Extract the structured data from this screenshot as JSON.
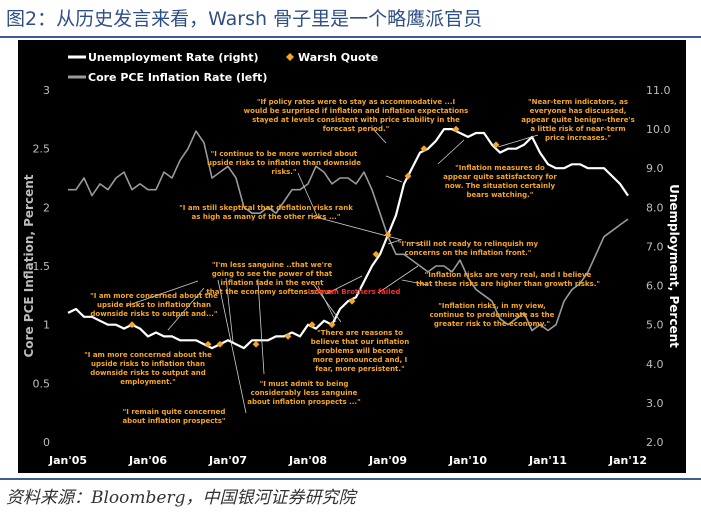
{
  "figure": {
    "title": "图2：从历史发言来看，Warsh 骨子里是一个略鹰派官员",
    "source": "资料来源：Bloomberg，中国银河证券研究院"
  },
  "colors": {
    "background": "#000000",
    "unemployment": "#ffffff",
    "pce": "#9a9a9a",
    "quote_marker": "#f5a623",
    "quote_text": "#f5a623",
    "red_label": "#ff2a2a",
    "axis_text": "#bdbdbd"
  },
  "chart_data": {
    "type": "line",
    "legend": {
      "placement": "top-left",
      "items": [
        {
          "label": "Unemployment Rate (right)",
          "marker": "line",
          "color": "#ffffff"
        },
        {
          "label": "Warsh Quote",
          "marker": "diamond",
          "color": "#f5a623"
        },
        {
          "label": "Core PCE Inflation Rate (left)",
          "marker": "line",
          "color": "#9a9a9a"
        }
      ]
    },
    "ylabel_left": "Core PCE Inflation, Percent",
    "ylabel_right": "Unemployment, Percent",
    "ylim_left": [
      0,
      3
    ],
    "ylim_right": [
      2.0,
      11.0
    ],
    "xlim": [
      2005.0,
      2012.05
    ],
    "grid": false,
    "x_ticks": [
      {
        "label": "Jan'05",
        "value": 2005.0
      },
      {
        "label": "Jan'06",
        "value": 2006.0
      },
      {
        "label": "Jan'07",
        "value": 2007.0
      },
      {
        "label": "Jan'08",
        "value": 2008.0
      },
      {
        "label": "Jan'09",
        "value": 2009.0
      },
      {
        "label": "Jan'10",
        "value": 2010.0
      },
      {
        "label": "Jan'11",
        "value": 2011.0
      },
      {
        "label": "Jan'12",
        "value": 2012.0
      }
    ],
    "y_ticks_left": [
      "0",
      "0.5",
      "1",
      "1.5",
      "2",
      "2.5",
      "3"
    ],
    "y_ticks_right": [
      "2.0",
      "3.0",
      "4.0",
      "5.0",
      "6.0",
      "7.0",
      "8.0",
      "9.0",
      "10.0",
      "11.0"
    ],
    "series": [
      {
        "name": "Unemployment Rate (right)",
        "axis": "right",
        "x": [
          2005.0,
          2005.1,
          2005.2,
          2005.3,
          2005.4,
          2005.5,
          2005.6,
          2005.7,
          2005.8,
          2005.9,
          2006.0,
          2006.1,
          2006.2,
          2006.3,
          2006.4,
          2006.5,
          2006.6,
          2006.7,
          2006.8,
          2006.9,
          2007.0,
          2007.1,
          2007.2,
          2007.3,
          2007.4,
          2007.5,
          2007.6,
          2007.7,
          2007.8,
          2007.9,
          2008.0,
          2008.1,
          2008.2,
          2008.3,
          2008.4,
          2008.5,
          2008.6,
          2008.7,
          2008.8,
          2008.9,
          2009.0,
          2009.1,
          2009.2,
          2009.3,
          2009.4,
          2009.5,
          2009.6,
          2009.7,
          2009.8,
          2009.9,
          2010.0,
          2010.1,
          2010.2,
          2010.3,
          2010.4,
          2010.5,
          2010.6,
          2010.7,
          2010.8,
          2010.9,
          2011.0,
          2011.1,
          2011.2,
          2011.3,
          2011.4,
          2011.5,
          2011.6,
          2011.7,
          2011.8,
          2011.9,
          2012.0
        ],
        "values": [
          5.3,
          5.4,
          5.2,
          5.2,
          5.1,
          5.0,
          5.0,
          4.9,
          5.0,
          4.9,
          4.7,
          4.8,
          4.7,
          4.7,
          4.6,
          4.6,
          4.6,
          4.5,
          4.4,
          4.5,
          4.6,
          4.5,
          4.4,
          4.6,
          4.6,
          4.6,
          4.7,
          4.7,
          4.8,
          4.7,
          5.0,
          4.9,
          5.1,
          5.0,
          5.4,
          5.6,
          5.7,
          6.1,
          6.5,
          6.8,
          7.3,
          7.8,
          8.6,
          9.0,
          9.4,
          9.5,
          9.7,
          10.0,
          10.0,
          9.9,
          9.8,
          9.9,
          9.9,
          9.6,
          9.4,
          9.5,
          9.5,
          9.6,
          9.8,
          9.4,
          9.1,
          9.0,
          9.0,
          9.1,
          9.1,
          9.0,
          9.0,
          9.0,
          8.8,
          8.6,
          8.3
        ]
      },
      {
        "name": "Core PCE Inflation Rate (left)",
        "axis": "left",
        "x": [
          2005.0,
          2005.1,
          2005.2,
          2005.3,
          2005.4,
          2005.5,
          2005.6,
          2005.7,
          2005.8,
          2005.9,
          2006.0,
          2006.1,
          2006.2,
          2006.3,
          2006.4,
          2006.5,
          2006.6,
          2006.7,
          2006.8,
          2006.9,
          2007.0,
          2007.1,
          2007.2,
          2007.3,
          2007.4,
          2007.5,
          2007.6,
          2007.7,
          2007.8,
          2007.9,
          2008.0,
          2008.1,
          2008.2,
          2008.3,
          2008.4,
          2008.5,
          2008.6,
          2008.7,
          2008.8,
          2008.9,
          2009.0,
          2009.1,
          2009.2,
          2009.3,
          2009.4,
          2009.5,
          2009.6,
          2009.7,
          2009.8,
          2009.9,
          2010.0,
          2010.1,
          2010.2,
          2010.3,
          2010.4,
          2010.5,
          2010.6,
          2010.7,
          2010.8,
          2010.9,
          2011.0,
          2011.1,
          2011.2,
          2011.3,
          2011.4,
          2011.5,
          2011.6,
          2011.7,
          2011.8,
          2011.9,
          2012.0
        ],
        "values": [
          2.15,
          2.15,
          2.25,
          2.1,
          2.2,
          2.15,
          2.25,
          2.3,
          2.15,
          2.2,
          2.15,
          2.15,
          2.3,
          2.25,
          2.4,
          2.5,
          2.65,
          2.55,
          2.25,
          2.3,
          2.35,
          2.25,
          2.0,
          1.95,
          1.95,
          2.0,
          1.95,
          2.05,
          2.15,
          2.15,
          2.2,
          2.35,
          2.3,
          2.2,
          2.25,
          2.25,
          2.2,
          2.3,
          2.15,
          1.95,
          1.75,
          1.6,
          1.6,
          1.55,
          1.5,
          1.45,
          1.5,
          1.5,
          1.45,
          1.55,
          1.4,
          1.3,
          1.25,
          1.2,
          1.05,
          1.0,
          1.05,
          1.1,
          0.95,
          1.0,
          0.95,
          1.0,
          1.2,
          1.3,
          1.35,
          1.45,
          1.6,
          1.75,
          1.8,
          1.85,
          1.9
        ]
      }
    ],
    "quote_markers": [
      {
        "x": 2005.8,
        "y_right": 5.0
      },
      {
        "x": 2006.75,
        "y_right": 4.5
      },
      {
        "x": 2006.9,
        "y_right": 4.5
      },
      {
        "x": 2007.35,
        "y_right": 4.5
      },
      {
        "x": 2007.75,
        "y_right": 4.7
      },
      {
        "x": 2008.05,
        "y_right": 5.0
      },
      {
        "x": 2008.3,
        "y_right": 5.0
      },
      {
        "x": 2008.55,
        "y_right": 5.6
      },
      {
        "x": 2008.85,
        "y_right": 6.8
      },
      {
        "x": 2009.0,
        "y_right": 7.3
      },
      {
        "x": 2009.25,
        "y_right": 8.8
      },
      {
        "x": 2009.45,
        "y_right": 9.5
      },
      {
        "x": 2009.85,
        "y_right": 10.0
      },
      {
        "x": 2010.35,
        "y_right": 9.6
      }
    ],
    "annotations": [
      {
        "id": "q1",
        "text": [
          "\"If policy rates were to stay as accommodative ...I",
          "would be surprised if inflation and inflation expectations",
          "stayed at levels consistent with price stability in the",
          "forecast period.\""
        ]
      },
      {
        "id": "q2",
        "text": [
          "\"Near-term indicators, as",
          "everyone has discussed,",
          "appear quite benign--there's",
          "a little risk of near-term",
          "price increases.\""
        ]
      },
      {
        "id": "q3",
        "text": [
          "\"I continue to be more worried about",
          "upside risks to inflation than downside",
          "risks.\""
        ]
      },
      {
        "id": "q4",
        "text": [
          "\"Inflation measures do",
          "appear quite satisfactory for",
          "now. The situation certainly",
          "bears watching.\""
        ]
      },
      {
        "id": "q5",
        "text": [
          "\"I am still skeptical that deflation risks rank",
          "as high as many of the other risks ...\""
        ]
      },
      {
        "id": "q6",
        "text": [
          "\"I'm still not ready to relinquish my",
          "concerns on the inflation front.\""
        ]
      },
      {
        "id": "q7",
        "text": [
          "\"I'm less sanguine ..that we're",
          "going to see the power of that",
          "inflation fade in the event",
          "that the economy softens some.\""
        ]
      },
      {
        "id": "q8",
        "text": [
          "\"Inflation risks are very real, and I believe",
          "that these risks are higher than growth risks.\""
        ]
      },
      {
        "id": "q9",
        "text": [
          "\"Inflation risks, in my view,",
          "continue to predominate as the",
          "greater risk to the economy.\""
        ]
      },
      {
        "id": "q10",
        "text": [
          "\"I am more concerned about the",
          "upside risks to inflation than",
          "downside risks to output and...\""
        ]
      },
      {
        "id": "q11",
        "text": [
          "\"There are reasons to",
          "believe that our inflation",
          "problems will become",
          "more pronounced and, I",
          "fear, more persistent.\""
        ]
      },
      {
        "id": "q12",
        "text": [
          "\"I am more concerned about the",
          "upside risks to inflation than",
          "downside risks to output and",
          "employment.\""
        ]
      },
      {
        "id": "q13",
        "text": [
          "\"I must admit to being",
          "considerably less sanguine",
          "about inflation prospects ...\""
        ]
      },
      {
        "id": "q14",
        "text": [
          "\"I remain quite concerned",
          "about inflation prospects\""
        ]
      }
    ],
    "event_labels": [
      {
        "id": "lehman",
        "text": "Lehman Brothers failed"
      }
    ]
  }
}
